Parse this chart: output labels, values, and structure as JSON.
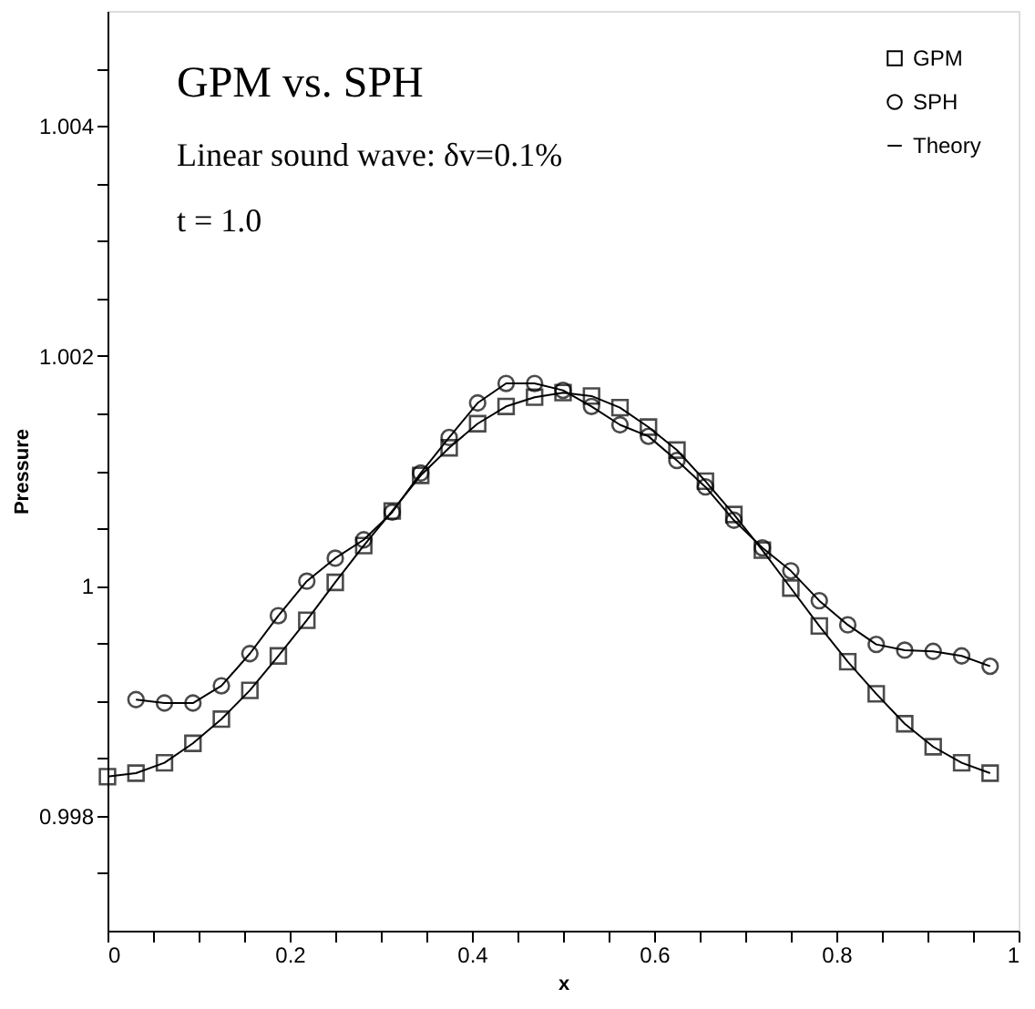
{
  "chart_data": {
    "type": "line",
    "xlabel": "x",
    "ylabel": "Pressure",
    "annotations": [
      "GPM vs. SPH",
      "Linear sound wave: δv=0.1%",
      "t = 1.0"
    ],
    "xlim": [
      0,
      1
    ],
    "ylim": [
      0.997,
      1.005
    ],
    "xticks": [
      0,
      {
        "value": 0.05,
        "label": null
      },
      {
        "value": 0.1,
        "label": null
      },
      {
        "value": 0.15,
        "label": null
      },
      0.2,
      {
        "value": 0.25,
        "label": null
      },
      {
        "value": 0.3,
        "label": null
      },
      {
        "value": 0.35,
        "label": null
      },
      0.4,
      {
        "value": 0.45,
        "label": null
      },
      {
        "value": 0.5,
        "label": null
      },
      {
        "value": 0.55,
        "label": null
      },
      0.6,
      {
        "value": 0.65,
        "label": null
      },
      {
        "value": 0.7,
        "label": null
      },
      {
        "value": 0.75,
        "label": null
      },
      0.8,
      {
        "value": 0.85,
        "label": null
      },
      {
        "value": 0.9,
        "label": null
      },
      {
        "value": 0.95,
        "label": null
      },
      1
    ],
    "yticks": [
      {
        "value": 0.9975,
        "label": null
      },
      0.998,
      {
        "value": 0.9985,
        "label": null
      },
      {
        "value": 0.999,
        "label": null
      },
      {
        "value": 0.9995,
        "label": null
      },
      1,
      {
        "value": 1.0005,
        "label": null
      },
      {
        "value": 1.001,
        "label": null
      },
      {
        "value": 1.0015,
        "label": null
      },
      1.002,
      {
        "value": 1.0025,
        "label": null
      },
      {
        "value": 1.003,
        "label": null
      },
      {
        "value": 1.0035,
        "label": null
      },
      1.004,
      {
        "value": 1.0045,
        "label": null
      }
    ],
    "grid": false,
    "legend": "top right",
    "x": [
      0,
      0.03125,
      0.0625,
      0.09375,
      0.125,
      0.15625,
      0.1875,
      0.21875,
      0.25,
      0.28125,
      0.3125,
      0.34375,
      0.375,
      0.40625,
      0.4375,
      0.46875,
      0.5,
      0.53125,
      0.5625,
      0.59375,
      0.625,
      0.65625,
      0.6875,
      0.71875,
      0.75,
      0.78125,
      0.8125,
      0.84375,
      0.875,
      0.90625,
      0.9375,
      0.96875
    ],
    "series": [
      {
        "name": "GPM",
        "type": "scatter",
        "marker": "square",
        "color": "#000000",
        "values": [
          0.99834,
          0.99837,
          0.99846,
          0.99863,
          0.99884,
          0.99909,
          0.99939,
          0.9997,
          1.00003,
          1.00035,
          1.00065,
          1.00096,
          1.0012,
          1.00141,
          1.00156,
          1.00164,
          1.00168,
          1.00165,
          1.00155,
          1.00138,
          1.00118,
          1.00091,
          1.00062,
          1.00031,
          0.99998,
          0.99965,
          0.99934,
          0.99906,
          0.9988,
          0.9986,
          0.99846,
          0.99837
        ]
      },
      {
        "name": "SPH",
        "type": "line",
        "marker": "circle",
        "color": "#000000",
        "x": [
          0.03125,
          0.0625,
          0.09375,
          0.125,
          0.15625,
          0.1875,
          0.21875,
          0.25,
          0.28125,
          0.3125,
          0.34375,
          0.375,
          0.40625,
          0.4375,
          0.46875,
          0.5,
          0.53125,
          0.5625,
          0.59375,
          0.625,
          0.65625,
          0.6875,
          0.71875,
          0.75,
          0.78125,
          0.8125,
          0.84375,
          0.875,
          0.90625,
          0.9375,
          0.96875
        ],
        "values": [
          0.99901,
          0.99898,
          0.99898,
          0.99913,
          0.99941,
          0.99974,
          1.00004,
          1.00024,
          1.0004,
          1.00064,
          1.00098,
          1.00129,
          1.00159,
          1.00176,
          1.00176,
          1.0017,
          1.00156,
          1.0014,
          1.0013,
          1.00109,
          1.00086,
          1.00057,
          1.00033,
          1.00013,
          0.99987,
          0.99966,
          0.99949,
          0.99944,
          0.99943,
          0.99939,
          0.9993
        ]
      },
      {
        "name": "Theory",
        "marker": "none",
        "line_style": "solid",
        "color": "#000000",
        "values": [
          0.99834,
          0.99837,
          0.99846,
          0.99863,
          0.99884,
          0.99909,
          0.99939,
          0.9997,
          1.00003,
          1.00035,
          1.00065,
          1.00096,
          1.0012,
          1.00141,
          1.00156,
          1.00164,
          1.00168,
          1.00165,
          1.00155,
          1.00138,
          1.00118,
          1.00091,
          1.00062,
          1.00031,
          0.99998,
          0.99965,
          0.99934,
          0.99906,
          0.9988,
          0.9986,
          0.99846,
          0.99837
        ]
      }
    ]
  }
}
